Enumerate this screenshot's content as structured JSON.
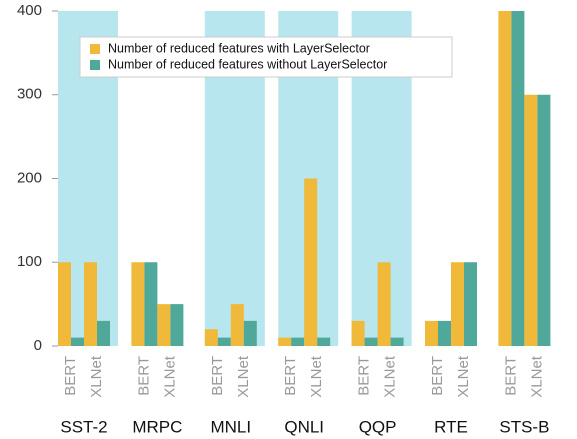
{
  "chart_data": {
    "type": "grouped_bar",
    "categories": [
      "SST-2",
      "MRPC",
      "MNLI",
      "QNLI",
      "QQP",
      "RTE",
      "STS-B"
    ],
    "subcategories": [
      "BERT",
      "XLNet"
    ],
    "series": [
      {
        "name": "Number of reduced features with LayerSelector",
        "color": "#f0b93a",
        "values": [
          [
            100,
            100
          ],
          [
            100,
            50
          ],
          [
            20,
            50
          ],
          [
            10,
            200
          ],
          [
            30,
            100
          ],
          [
            30,
            100
          ],
          [
            400,
            300
          ]
        ]
      },
      {
        "name": "Number of reduced features without LayerSelector",
        "color": "#4fa89a",
        "values": [
          [
            10,
            30
          ],
          [
            100,
            50
          ],
          [
            10,
            30
          ],
          [
            10,
            10
          ],
          [
            10,
            10
          ],
          [
            30,
            100
          ],
          [
            400,
            300
          ]
        ]
      }
    ],
    "shaded": [
      true,
      false,
      true,
      true,
      true,
      false,
      false
    ],
    "shade_color": "#b7e6ee",
    "ylim": [
      0,
      400
    ],
    "yticks": [
      0,
      100,
      200,
      300,
      400
    ],
    "legend": "top-left"
  }
}
